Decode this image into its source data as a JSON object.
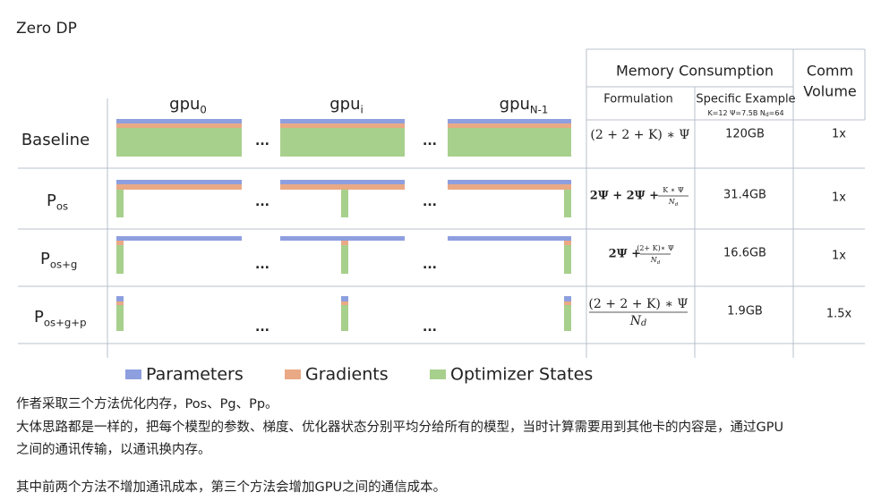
{
  "title": "Zero DP",
  "figure": {
    "gpus": [
      {
        "base": "gpu",
        "sub": "0"
      },
      {
        "base": "gpu",
        "sub": "i"
      },
      {
        "base": "gpu",
        "sub": "N-1"
      }
    ],
    "dots": "...",
    "table_header": {
      "memory": "Memory Consumption",
      "comm": [
        "Comm",
        "Volume"
      ],
      "formulation": "Formulation",
      "example": "Specific Example",
      "example_note": [
        "K=12 Ψ=7.5B N",
        "d",
        "=64"
      ]
    },
    "rows": [
      {
        "label": "Baseline",
        "formula": {
          "text": "(2 + 2 + K) ∗ Ψ"
        },
        "example": "120GB",
        "comm": "1x"
      },
      {
        "label": "P",
        "sub": "os",
        "formula": {
          "text": "2Ψ + 2Ψ +",
          "num": "K ∗ Ψ",
          "den": "N",
          "den_sub": "d"
        },
        "example": "31.4GB",
        "comm": "1x"
      },
      {
        "label": "P",
        "sub": "os+g",
        "formula": {
          "text": "2Ψ +",
          "num": "(2+ K)∗ Ψ",
          "den": "N",
          "den_sub": "d"
        },
        "example": "16.6GB",
        "comm": "1x"
      },
      {
        "label": "P",
        "sub": "os+g+p",
        "formula": {
          "num": "(2 + 2 + K) ∗ Ψ",
          "den": "N",
          "den_sub": "d"
        },
        "example": "1.9GB",
        "comm": "1.5x"
      }
    ],
    "legend": [
      "Parameters",
      "Gradients",
      "Optimizer States"
    ]
  },
  "paragraphs": [
    "作者采取三个方法优化内存，Pos、Pg、Pp。",
    "大体思路都是一样的，把每个模型的参数、梯度、优化器状态分别平均分给所有的模型，当时计算需要用到其他卡的内容是，通过GPU",
    "之间的通讯传输，以通讯换内存。",
    "其中前两个方法不增加通讯成本，第三个方法会增加GPU之间的通信成本。"
  ]
}
